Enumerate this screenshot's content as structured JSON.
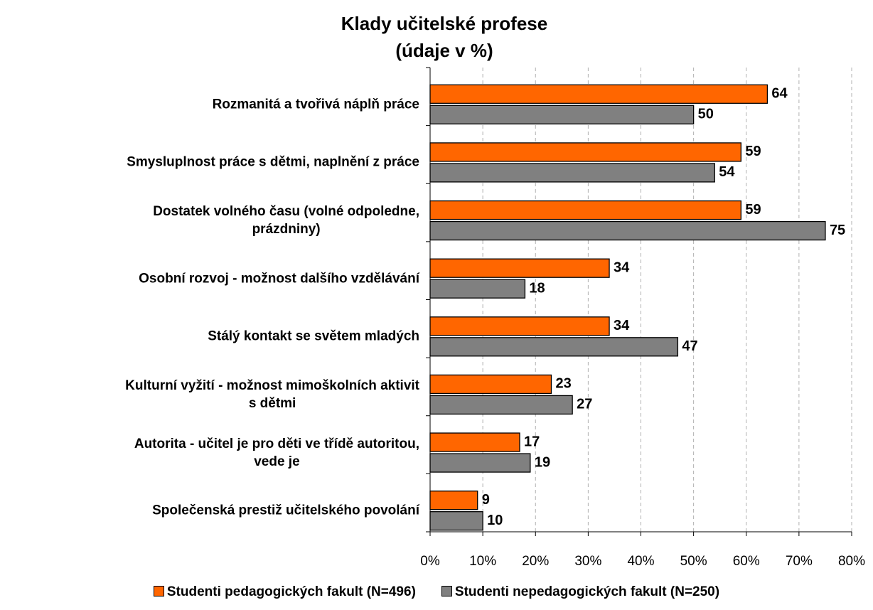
{
  "chart_data": {
    "type": "bar",
    "orientation": "horizontal",
    "title": "Klady učitelské profese\n(údaje v %)",
    "categories": [
      "Rozmanitá a tvořivá náplň práce",
      "Smysluplnost práce s dětmi, naplnění z práce",
      "Dostatek volného času (volné odpoledne,\nprázdniny)",
      "Osobní rozvoj - možnost dalšího vzdělávání",
      "Stálý kontakt se světem mladých",
      "Kulturní vyžití - možnost mimoškolních aktivit\ns dětmi",
      "Autorita - učitel je pro děti ve třídě autoritou,\nvede je",
      "Společenská prestiž učitelského povolání"
    ],
    "series": [
      {
        "name": "Studenti pedagogických fakult (N=496)",
        "color": "#ff6600",
        "values": [
          64,
          59,
          59,
          34,
          34,
          23,
          17,
          9
        ]
      },
      {
        "name": "Studenti nepedagogických fakult (N=250)",
        "color": "#808080",
        "values": [
          50,
          54,
          75,
          18,
          47,
          27,
          19,
          10
        ]
      }
    ],
    "xlim": [
      0,
      80
    ],
    "xticks": [
      {
        "value": 0,
        "label": "0%"
      },
      {
        "value": 10,
        "label": "10%"
      },
      {
        "value": 20,
        "label": "20%"
      },
      {
        "value": 30,
        "label": "30%"
      },
      {
        "value": 40,
        "label": "40%"
      },
      {
        "value": 50,
        "label": "50%"
      },
      {
        "value": 60,
        "label": "60%"
      },
      {
        "value": 70,
        "label": "70%"
      },
      {
        "value": 80,
        "label": "80%"
      }
    ],
    "grid": true,
    "legend": "bottom"
  }
}
